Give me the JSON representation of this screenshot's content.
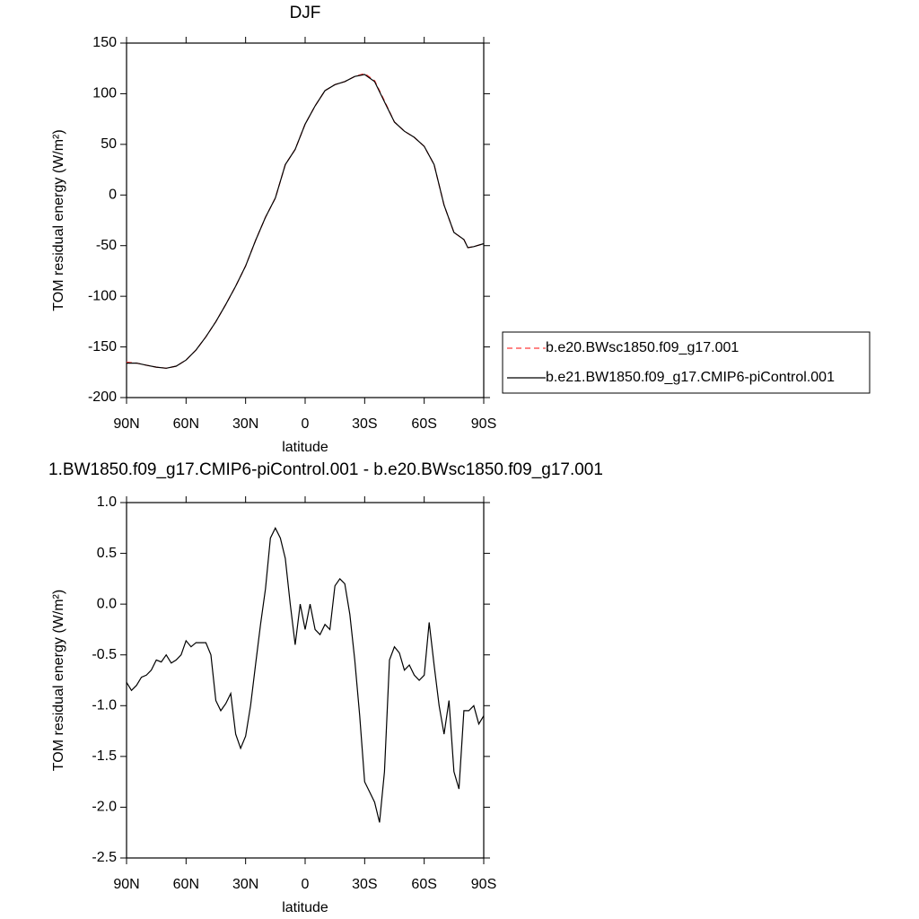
{
  "chart_data": [
    {
      "type": "line",
      "title": "DJF",
      "x_label": "latitude",
      "y_label": "TOM residual energy (W/m²)",
      "xlim": [
        90,
        -90
      ],
      "xticks": [
        {
          "value": 90,
          "label": "90N"
        },
        {
          "value": 60,
          "label": "60N"
        },
        {
          "value": 30,
          "label": "30N"
        },
        0,
        {
          "value": -30,
          "label": "30S"
        },
        {
          "value": -60,
          "label": "60S"
        },
        {
          "value": -90,
          "label": "90S"
        }
      ],
      "ylim": [
        -200,
        150
      ],
      "yticks": [
        150,
        100,
        50,
        0,
        -50,
        -100,
        -150,
        -200
      ],
      "legend": "right",
      "x": [
        90,
        85,
        80,
        75,
        70,
        65,
        60,
        55,
        50,
        45,
        40,
        35,
        30,
        25,
        20,
        15,
        10,
        5,
        0,
        -5,
        -10,
        -15,
        -20,
        -25,
        -30,
        -35,
        -40,
        -45,
        -50,
        -55,
        -60,
        -65,
        -70,
        -75,
        -80,
        -82,
        -85,
        -90
      ],
      "series": [
        {
          "name": "b.e20.BWsc1850.f09_g17.001",
          "color": "#ff3b3b",
          "dash": "dashed",
          "values": [
            -165,
            -166,
            -168,
            -170,
            -171,
            -169,
            -163,
            -153,
            -140,
            -125,
            -108,
            -90,
            -70,
            -45,
            -22,
            -3,
            30,
            45,
            70,
            88,
            103,
            109,
            112,
            117,
            120,
            113,
            93,
            72,
            63,
            57,
            48,
            30,
            -10,
            -37,
            -44,
            -52,
            -51,
            -48
          ]
        },
        {
          "name": "b.e21.BW1850.f09_g17.CMIP6-piControl.001",
          "color": "#000000",
          "dash": "solid",
          "values": [
            -166,
            -166,
            -168,
            -170,
            -171,
            -169,
            -163,
            -153,
            -140,
            -125,
            -108,
            -90,
            -70,
            -45,
            -22,
            -3,
            30,
            45,
            70,
            88,
            103,
            109,
            112,
            117,
            119,
            112,
            92,
            72,
            63,
            57,
            48,
            30,
            -10,
            -37,
            -44,
            -52,
            -51,
            -48
          ]
        }
      ]
    },
    {
      "type": "line",
      "title": "1.BW1850.f09_g17.CMIP6-piControl.001 - b.e20.BWsc1850.f09_g17.001",
      "x_label": "latitude",
      "y_label": "TOM residual energy (W/m²)",
      "xlim": [
        90,
        -90
      ],
      "xticks": [
        {
          "value": 90,
          "label": "90N"
        },
        {
          "value": 60,
          "label": "60N"
        },
        {
          "value": 30,
          "label": "30N"
        },
        0,
        {
          "value": -30,
          "label": "30S"
        },
        {
          "value": -60,
          "label": "60S"
        },
        {
          "value": -90,
          "label": "90S"
        }
      ],
      "ylim": [
        -2.5,
        1
      ],
      "yticks": [
        {
          "value": 1,
          "label": "1.0"
        },
        0.5,
        {
          "value": 0,
          "label": "0.0"
        },
        -0.5,
        {
          "value": -1,
          "label": "-1.0"
        },
        -1.5,
        {
          "value": -2,
          "label": "-2.0"
        },
        -2.5
      ],
      "x": [
        90,
        87.5,
        85,
        82.5,
        80,
        77.5,
        75,
        72.5,
        70,
        67.5,
        65,
        62.5,
        60,
        57.5,
        55,
        52.5,
        50,
        47.5,
        45,
        42.5,
        40,
        37.5,
        35,
        32.5,
        30,
        27.5,
        25,
        22.5,
        20,
        17.5,
        15,
        12.5,
        10,
        7.5,
        5,
        2.5,
        0,
        -2.5,
        -5,
        -7.5,
        -10,
        -12.5,
        -15,
        -17.5,
        -20,
        -22.5,
        -25,
        -27.5,
        -30,
        -32.5,
        -35,
        -37.5,
        -40,
        -42.5,
        -45,
        -47.5,
        -50,
        -52.5,
        -55,
        -57.5,
        -60,
        -62.5,
        -65,
        -67.5,
        -70,
        -72.5,
        -75,
        -77.5,
        -80,
        -82.5,
        -85,
        -87.5,
        -90
      ],
      "series": [
        {
          "color": "#000000",
          "dash": "solid",
          "values": [
            -0.77,
            -0.85,
            -0.8,
            -0.72,
            -0.7,
            -0.65,
            -0.55,
            -0.57,
            -0.5,
            -0.58,
            -0.55,
            -0.5,
            -0.36,
            -0.42,
            -0.38,
            -0.38,
            -0.38,
            -0.5,
            -0.95,
            -1.05,
            -0.98,
            -0.88,
            -1.28,
            -1.42,
            -1.3,
            -1.0,
            -0.6,
            -0.2,
            0.15,
            0.65,
            0.75,
            0.65,
            0.45,
            0.0,
            -0.4,
            0.0,
            -0.25,
            0.0,
            -0.25,
            -0.3,
            -0.2,
            -0.25,
            0.18,
            0.25,
            0.2,
            -0.1,
            -0.55,
            -1.1,
            -1.75,
            -1.85,
            -1.95,
            -2.15,
            -1.65,
            -0.55,
            -0.42,
            -0.48,
            -0.65,
            -0.6,
            -0.7,
            -0.75,
            -0.7,
            -0.18,
            -0.6,
            -1.0,
            -1.28,
            -0.95,
            -1.65,
            -1.82,
            -1.05,
            -1.05,
            -1.0,
            -1.18,
            -1.1
          ]
        }
      ]
    }
  ]
}
